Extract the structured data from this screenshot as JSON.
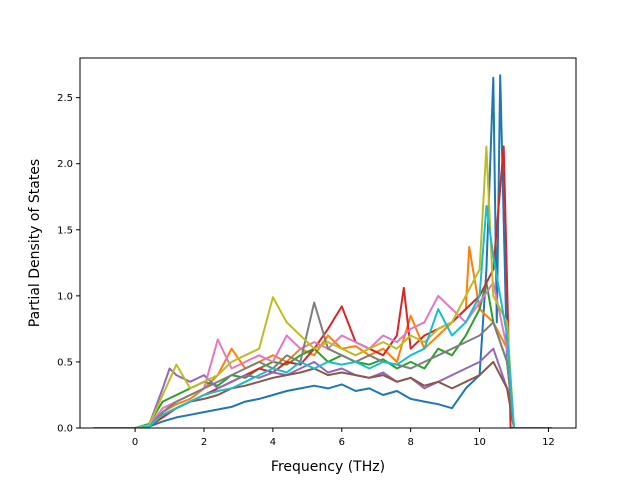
{
  "chart_data": {
    "type": "line",
    "title": "",
    "xlabel": "Frequency (THz)",
    "ylabel": "Partial Density of States",
    "xlim": [
      -1.6,
      12.8
    ],
    "ylim": [
      0.0,
      2.8
    ],
    "xticks": [
      0,
      2,
      4,
      6,
      8,
      10,
      12
    ],
    "xtick_labels": [
      "0",
      "2",
      "4",
      "6",
      "8",
      "10",
      "12"
    ],
    "yticks": [
      0.0,
      0.5,
      1.0,
      1.5,
      2.0,
      2.5
    ],
    "ytick_labels": [
      "0.0",
      "0.5",
      "1.0",
      "1.5",
      "2.0",
      "2.5"
    ],
    "grid": false,
    "legend": "none",
    "series_colors": [
      "#1f77b4",
      "#ff7f0e",
      "#2ca02c",
      "#d62728",
      "#9467bd",
      "#8c564b",
      "#e377c2",
      "#7f7f7f",
      "#bcbd22",
      "#17becf"
    ],
    "series": [
      {
        "x": [
          -1.2,
          0.0,
          0.4,
          0.8,
          1.2,
          1.6,
          2.0,
          2.4,
          2.8,
          3.2,
          3.6,
          4.0,
          4.4,
          4.8,
          5.2,
          5.6,
          6.0,
          6.4,
          6.8,
          7.2,
          7.6,
          8.0,
          8.4,
          8.8,
          9.2,
          9.6,
          10.0,
          10.2,
          10.4,
          10.5,
          10.6,
          10.8,
          11.0,
          12.1
        ],
        "y": [
          0.0,
          0.0,
          0.01,
          0.05,
          0.08,
          0.1,
          0.12,
          0.14,
          0.16,
          0.2,
          0.22,
          0.25,
          0.28,
          0.3,
          0.32,
          0.3,
          0.33,
          0.28,
          0.3,
          0.25,
          0.28,
          0.22,
          0.2,
          0.18,
          0.15,
          0.3,
          0.4,
          1.2,
          2.65,
          0.8,
          2.67,
          0.5,
          0.0,
          0.0
        ]
      },
      {
        "x": [
          -1.2,
          0.0,
          0.4,
          0.8,
          1.2,
          1.6,
          2.0,
          2.4,
          2.8,
          3.2,
          3.6,
          4.0,
          4.4,
          4.8,
          5.2,
          5.6,
          6.0,
          6.4,
          6.8,
          7.2,
          7.6,
          8.0,
          8.4,
          8.8,
          9.2,
          9.6,
          9.7,
          10.0,
          10.4,
          10.8,
          11.0,
          12.1
        ],
        "y": [
          0.0,
          0.0,
          0.02,
          0.12,
          0.18,
          0.22,
          0.3,
          0.4,
          0.6,
          0.45,
          0.5,
          0.55,
          0.5,
          0.6,
          0.55,
          0.7,
          0.6,
          0.62,
          0.55,
          0.6,
          0.5,
          0.85,
          0.6,
          0.7,
          0.8,
          0.9,
          1.37,
          0.9,
          0.8,
          0.6,
          0.0,
          0.0
        ]
      },
      {
        "x": [
          -1.2,
          0.0,
          0.4,
          0.8,
          1.2,
          1.6,
          2.0,
          2.4,
          2.8,
          3.2,
          3.6,
          4.0,
          4.4,
          4.8,
          5.2,
          5.6,
          6.0,
          6.4,
          6.8,
          7.2,
          7.6,
          8.0,
          8.4,
          8.8,
          9.2,
          9.6,
          10.0,
          10.2,
          10.4,
          10.8,
          11.0,
          12.1
        ],
        "y": [
          0.0,
          0.0,
          0.03,
          0.2,
          0.25,
          0.3,
          0.35,
          0.32,
          0.4,
          0.38,
          0.45,
          0.5,
          0.48,
          0.55,
          0.6,
          0.5,
          0.55,
          0.5,
          0.48,
          0.52,
          0.45,
          0.5,
          0.45,
          0.6,
          0.55,
          0.7,
          0.9,
          1.1,
          0.8,
          0.5,
          0.0,
          0.0
        ]
      },
      {
        "x": [
          -1.2,
          0.0,
          0.4,
          0.8,
          1.2,
          1.6,
          2.0,
          2.4,
          2.8,
          3.2,
          3.6,
          4.0,
          4.4,
          4.8,
          5.2,
          5.6,
          6.0,
          6.4,
          6.8,
          7.2,
          7.6,
          7.8,
          8.0,
          8.4,
          8.8,
          9.2,
          9.6,
          10.0,
          10.4,
          10.7,
          10.9,
          12.1
        ],
        "y": [
          0.0,
          0.0,
          0.01,
          0.08,
          0.15,
          0.2,
          0.25,
          0.3,
          0.35,
          0.4,
          0.45,
          0.42,
          0.5,
          0.48,
          0.6,
          0.75,
          0.92,
          0.65,
          0.6,
          0.55,
          0.7,
          1.06,
          0.6,
          0.7,
          0.75,
          0.8,
          0.9,
          1.0,
          1.2,
          2.13,
          0.0,
          0.0
        ]
      },
      {
        "x": [
          -1.2,
          0.0,
          0.4,
          0.8,
          1.0,
          1.2,
          1.6,
          2.0,
          2.4,
          2.8,
          3.2,
          3.6,
          4.0,
          4.4,
          4.8,
          5.2,
          5.6,
          6.0,
          6.4,
          6.8,
          7.2,
          7.6,
          8.0,
          8.4,
          8.8,
          9.2,
          9.6,
          10.0,
          10.4,
          10.8,
          11.0,
          12.1
        ],
        "y": [
          0.0,
          0.0,
          0.02,
          0.3,
          0.45,
          0.4,
          0.35,
          0.4,
          0.3,
          0.35,
          0.4,
          0.38,
          0.42,
          0.4,
          0.45,
          0.5,
          0.42,
          0.45,
          0.4,
          0.38,
          0.42,
          0.35,
          0.38,
          0.3,
          0.35,
          0.4,
          0.45,
          0.5,
          0.6,
          0.3,
          0.0,
          0.0
        ]
      },
      {
        "x": [
          -1.2,
          0.0,
          0.4,
          0.8,
          1.2,
          1.6,
          2.0,
          2.4,
          2.8,
          3.2,
          3.6,
          4.0,
          4.4,
          4.8,
          5.2,
          5.6,
          6.0,
          6.4,
          6.8,
          7.2,
          7.6,
          8.0,
          8.4,
          8.8,
          9.2,
          9.6,
          10.0,
          10.4,
          10.8,
          11.0,
          12.1
        ],
        "y": [
          0.0,
          0.0,
          0.01,
          0.1,
          0.15,
          0.2,
          0.22,
          0.25,
          0.3,
          0.32,
          0.35,
          0.38,
          0.4,
          0.42,
          0.45,
          0.4,
          0.42,
          0.4,
          0.38,
          0.4,
          0.35,
          0.38,
          0.32,
          0.35,
          0.3,
          0.35,
          0.4,
          0.5,
          0.3,
          0.0,
          0.0
        ]
      },
      {
        "x": [
          -1.2,
          0.0,
          0.4,
          0.8,
          1.2,
          1.6,
          2.0,
          2.4,
          2.8,
          3.2,
          3.6,
          4.0,
          4.4,
          4.8,
          5.2,
          5.6,
          6.0,
          6.4,
          6.8,
          7.2,
          7.6,
          8.0,
          8.4,
          8.8,
          9.2,
          9.6,
          10.0,
          10.4,
          10.8,
          11.0,
          12.1
        ],
        "y": [
          0.0,
          0.0,
          0.02,
          0.15,
          0.2,
          0.25,
          0.3,
          0.67,
          0.45,
          0.5,
          0.55,
          0.5,
          0.7,
          0.6,
          0.65,
          0.6,
          0.7,
          0.65,
          0.6,
          0.7,
          0.65,
          0.75,
          0.8,
          1.0,
          0.9,
          0.8,
          0.95,
          1.1,
          0.6,
          0.0,
          0.0
        ]
      },
      {
        "x": [
          -1.2,
          0.0,
          0.4,
          0.8,
          1.2,
          1.6,
          2.0,
          2.4,
          2.8,
          3.2,
          3.6,
          4.0,
          4.4,
          4.8,
          5.2,
          5.6,
          6.0,
          6.4,
          6.8,
          7.2,
          7.6,
          8.0,
          8.4,
          8.8,
          9.2,
          9.6,
          10.0,
          10.4,
          10.8,
          11.0,
          12.1
        ],
        "y": [
          0.0,
          0.0,
          0.01,
          0.12,
          0.2,
          0.25,
          0.3,
          0.35,
          0.4,
          0.45,
          0.5,
          0.45,
          0.55,
          0.5,
          0.95,
          0.6,
          0.55,
          0.5,
          0.55,
          0.5,
          0.48,
          0.45,
          0.5,
          0.55,
          0.6,
          0.65,
          0.7,
          0.8,
          0.5,
          0.0,
          0.0
        ]
      },
      {
        "x": [
          -1.2,
          0.0,
          0.4,
          0.8,
          1.2,
          1.6,
          2.0,
          2.4,
          2.8,
          3.2,
          3.6,
          4.0,
          4.4,
          4.8,
          5.2,
          5.6,
          6.0,
          6.4,
          6.8,
          7.2,
          7.6,
          8.0,
          8.4,
          8.8,
          9.2,
          9.6,
          10.0,
          10.2,
          10.4,
          10.8,
          11.0,
          12.1
        ],
        "y": [
          0.0,
          0.0,
          0.02,
          0.25,
          0.48,
          0.3,
          0.35,
          0.4,
          0.5,
          0.55,
          0.6,
          0.99,
          0.8,
          0.7,
          0.6,
          0.65,
          0.6,
          0.55,
          0.6,
          0.65,
          0.6,
          0.7,
          0.65,
          0.75,
          0.8,
          1.0,
          1.2,
          2.13,
          1.0,
          0.8,
          0.0,
          0.0
        ]
      },
      {
        "x": [
          -1.2,
          0.0,
          0.4,
          0.8,
          1.2,
          1.6,
          2.0,
          2.4,
          2.8,
          3.2,
          3.6,
          4.0,
          4.4,
          4.8,
          5.2,
          5.6,
          6.0,
          6.4,
          6.8,
          7.2,
          7.6,
          8.0,
          8.4,
          8.8,
          9.2,
          9.6,
          10.0,
          10.2,
          10.4,
          10.8,
          11.0,
          12.1
        ],
        "y": [
          0.0,
          0.0,
          0.01,
          0.1,
          0.15,
          0.2,
          0.25,
          0.28,
          0.3,
          0.35,
          0.4,
          0.45,
          0.42,
          0.5,
          0.45,
          0.5,
          0.48,
          0.5,
          0.45,
          0.5,
          0.48,
          0.55,
          0.6,
          0.9,
          0.7,
          0.8,
          1.0,
          1.68,
          1.3,
          0.7,
          0.0,
          0.0
        ]
      }
    ]
  }
}
